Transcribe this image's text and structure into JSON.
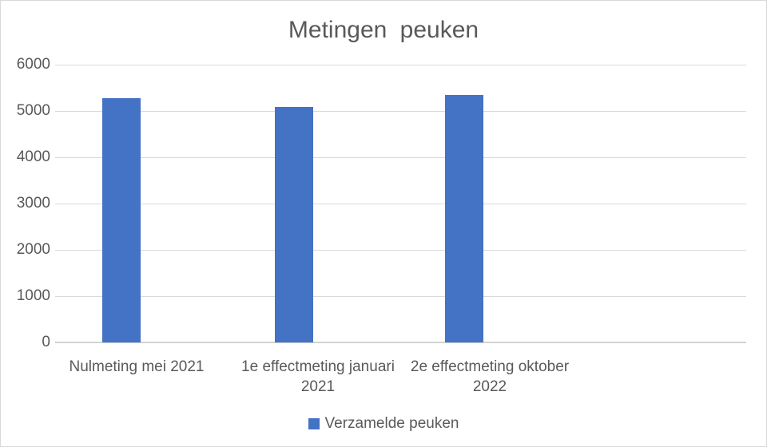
{
  "title": "Metingen peuken",
  "legend": {
    "label": "Verzamelde peuken"
  },
  "colors": {
    "bar": "#4472c4",
    "text": "#595959",
    "gridline": "#d9d9d9",
    "axis_line": "#d2d2d2",
    "chart_border": "#d9d9d9",
    "background": "#ffffff"
  },
  "chart_data": {
    "type": "bar",
    "title": "Metingen peuken",
    "categories": [
      "Nulmeting mei 2021",
      "1e effectmeting januari 2021",
      "2e effectmeting oktober 2022"
    ],
    "series": [
      {
        "name": "Verzamelde peuken",
        "color": "#4472c4",
        "values": [
          5280,
          5090,
          5350
        ]
      }
    ],
    "xlabel": "",
    "ylabel": "",
    "ylim": [
      0,
      6000
    ],
    "yticks": [
      0,
      1000,
      2000,
      3000,
      4000,
      5000,
      6000
    ],
    "grid": true,
    "legend_position": "bottom"
  }
}
